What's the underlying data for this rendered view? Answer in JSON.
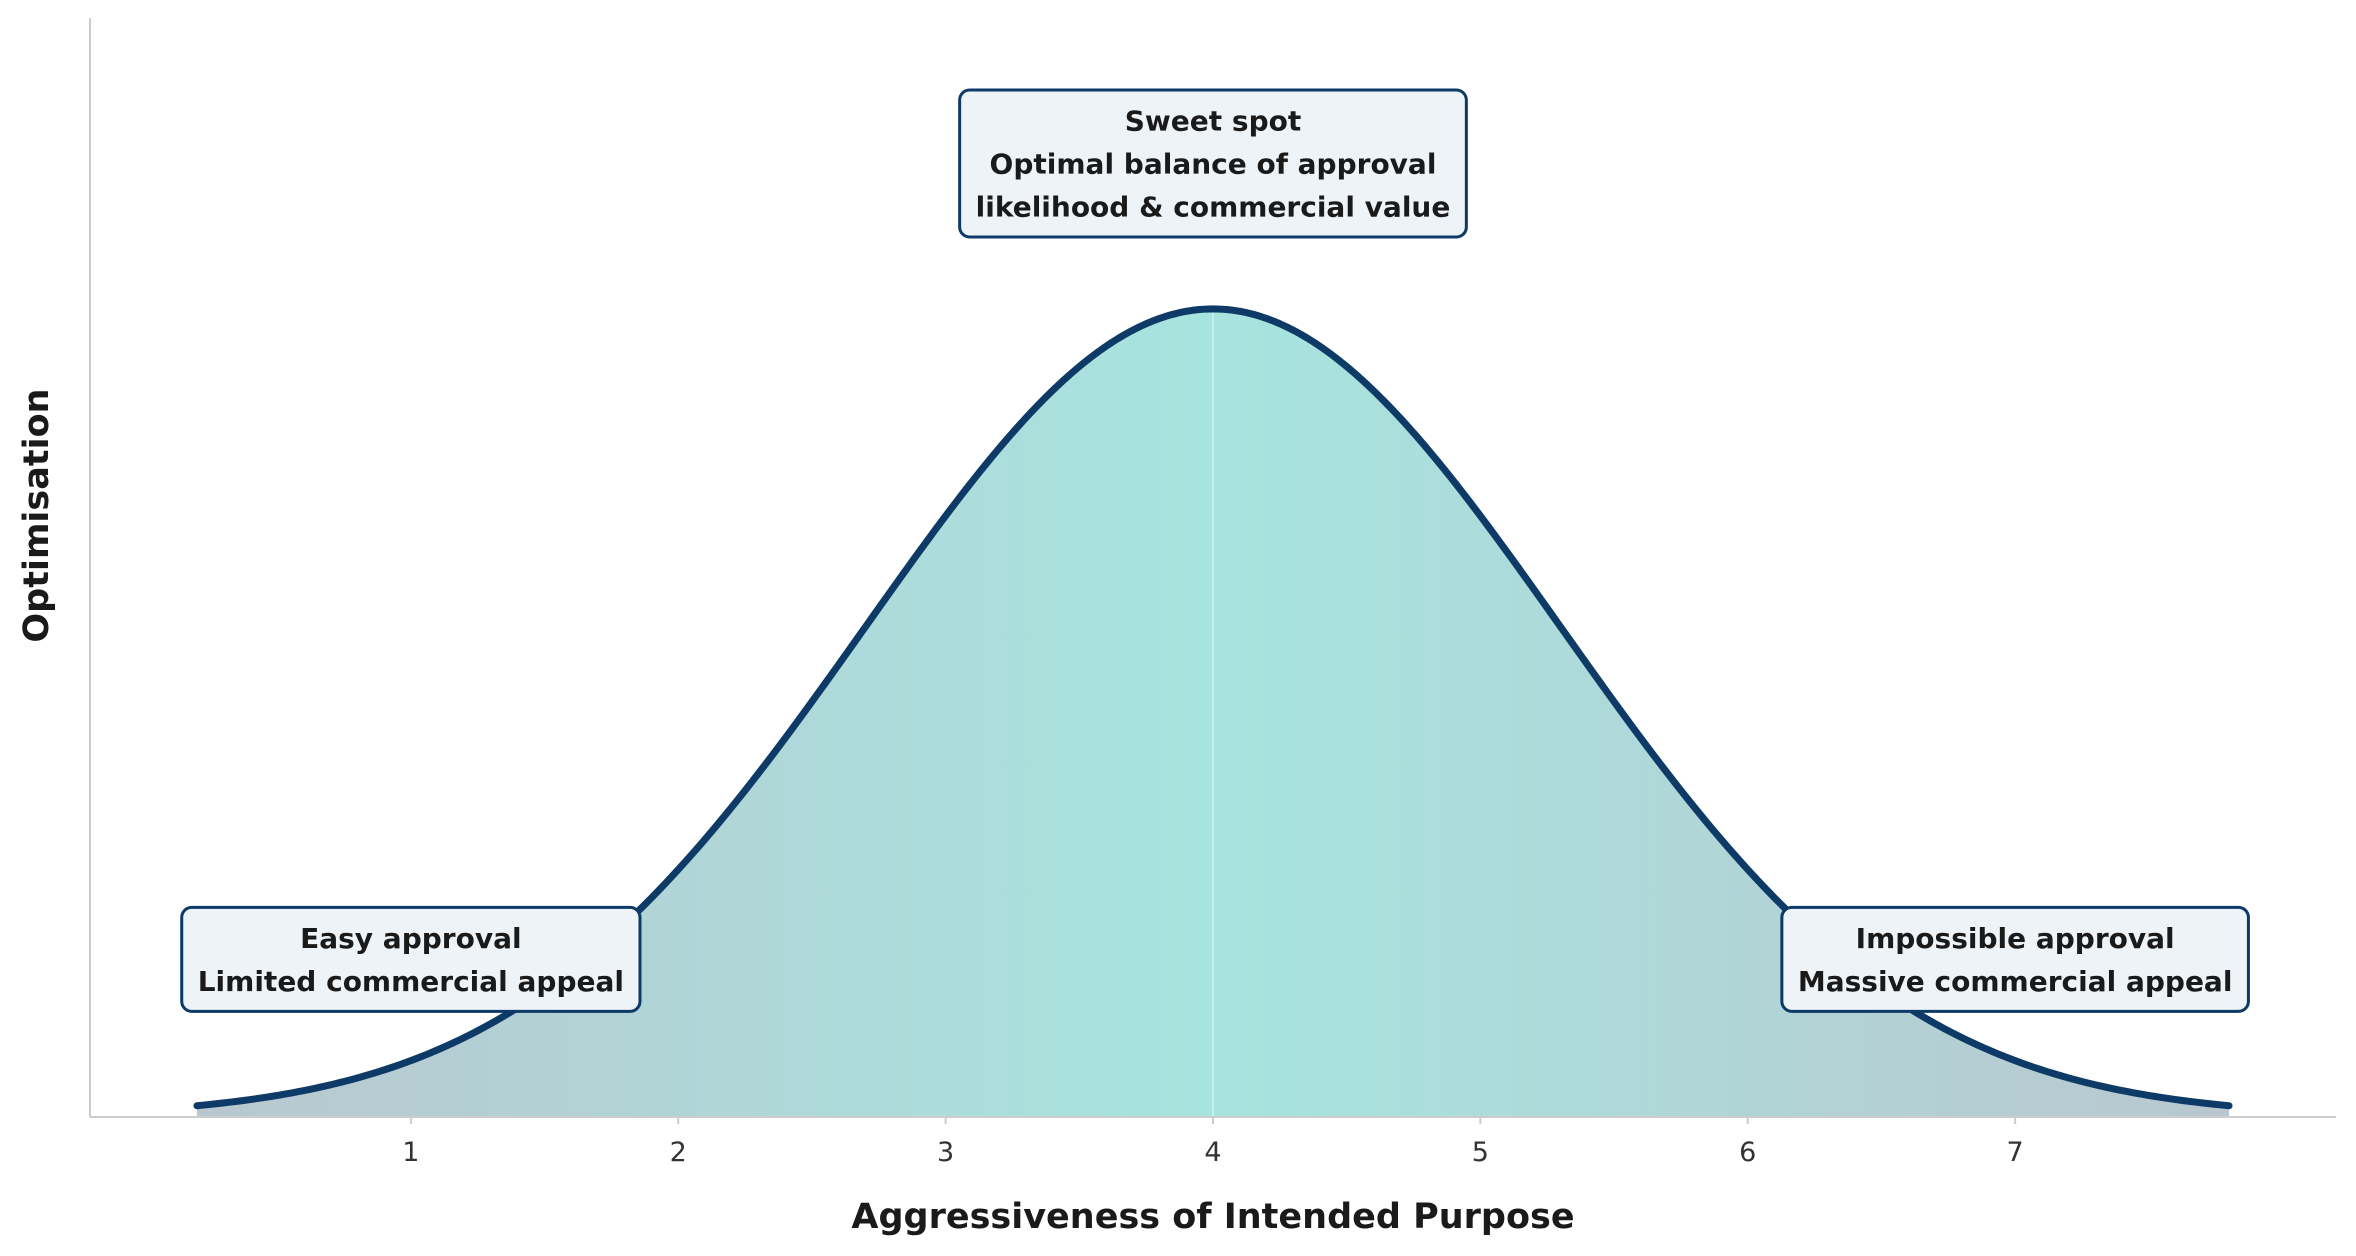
{
  "chart_data": {
    "type": "area",
    "title": "",
    "xlabel": "Aggressiveness of Intended Purpose",
    "ylabel": "Optimisation",
    "x_ticks": [
      1,
      2,
      3,
      4,
      5,
      6,
      7
    ],
    "xlim": [
      -0.2,
      8.2
    ],
    "x_range": [
      0.2,
      7.8
    ],
    "ylim": [
      0,
      1.36
    ],
    "curve": {
      "shape": "gaussian",
      "mean": 4,
      "sd": 1.3,
      "peak": 1.0
    },
    "y_ticks_shown": false,
    "grid": false,
    "legend": "none",
    "annotations": [
      {
        "name": "sweet-spot",
        "x": 4.0,
        "y": 1.18,
        "lines": [
          "Sweet spot",
          "Optimal balance of approval",
          "likelihood & commercial value"
        ]
      },
      {
        "name": "easy-approval",
        "x": 1.0,
        "y": 0.195,
        "lines": [
          "Easy approval",
          "Limited commercial appeal"
        ]
      },
      {
        "name": "impossible-approval",
        "x": 7.0,
        "y": 0.195,
        "lines": [
          "Impossible approval",
          "Massive commercial appeal"
        ]
      }
    ]
  },
  "colors": {
    "curve": "#0d3a66",
    "fill_center": "#a7e4df",
    "fill_edge": "#b9c7d0",
    "box_bg": "#eef3f8",
    "box_border": "#0d3a66",
    "axis": "#cccccc",
    "text": "#1a1a1a"
  }
}
